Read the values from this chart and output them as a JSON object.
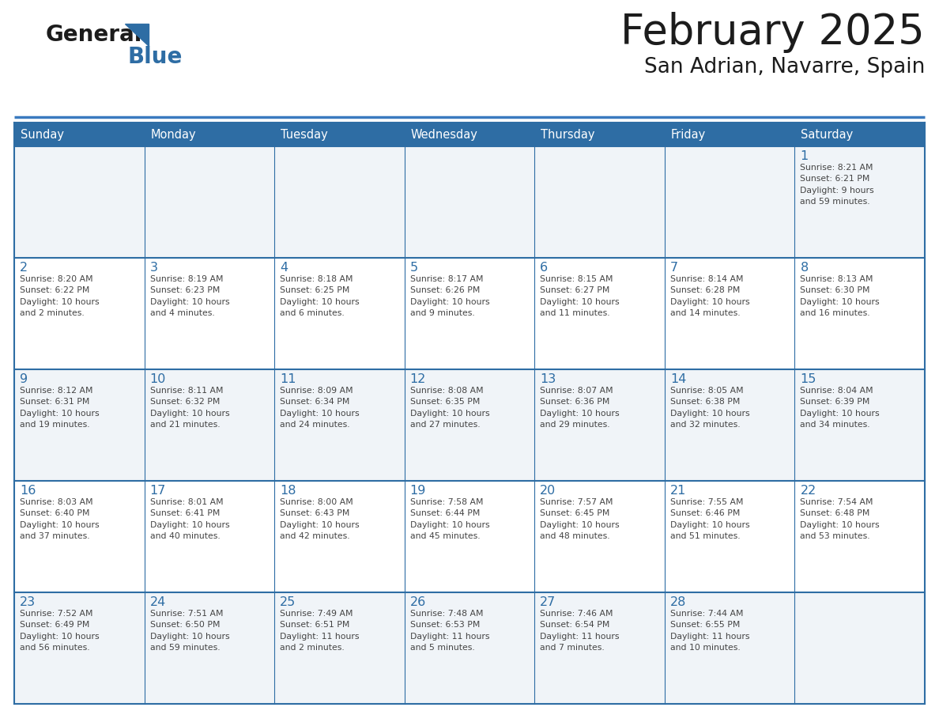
{
  "title": "February 2025",
  "subtitle": "San Adrian, Navarre, Spain",
  "header_color": "#2e6da4",
  "header_text_color": "#ffffff",
  "cell_bg_odd": "#f0f0f0",
  "cell_bg_even": "#ffffff",
  "day_number_color": "#2e6da4",
  "info_text_color": "#555555",
  "border_color": "#2e6da4",
  "line_color": "#3a7abf",
  "days_of_week": [
    "Sunday",
    "Monday",
    "Tuesday",
    "Wednesday",
    "Thursday",
    "Friday",
    "Saturday"
  ],
  "weeks": [
    [
      {
        "day": null,
        "info": ""
      },
      {
        "day": null,
        "info": ""
      },
      {
        "day": null,
        "info": ""
      },
      {
        "day": null,
        "info": ""
      },
      {
        "day": null,
        "info": ""
      },
      {
        "day": null,
        "info": ""
      },
      {
        "day": 1,
        "info": "Sunrise: 8:21 AM\nSunset: 6:21 PM\nDaylight: 9 hours\nand 59 minutes."
      }
    ],
    [
      {
        "day": 2,
        "info": "Sunrise: 8:20 AM\nSunset: 6:22 PM\nDaylight: 10 hours\nand 2 minutes."
      },
      {
        "day": 3,
        "info": "Sunrise: 8:19 AM\nSunset: 6:23 PM\nDaylight: 10 hours\nand 4 minutes."
      },
      {
        "day": 4,
        "info": "Sunrise: 8:18 AM\nSunset: 6:25 PM\nDaylight: 10 hours\nand 6 minutes."
      },
      {
        "day": 5,
        "info": "Sunrise: 8:17 AM\nSunset: 6:26 PM\nDaylight: 10 hours\nand 9 minutes."
      },
      {
        "day": 6,
        "info": "Sunrise: 8:15 AM\nSunset: 6:27 PM\nDaylight: 10 hours\nand 11 minutes."
      },
      {
        "day": 7,
        "info": "Sunrise: 8:14 AM\nSunset: 6:28 PM\nDaylight: 10 hours\nand 14 minutes."
      },
      {
        "day": 8,
        "info": "Sunrise: 8:13 AM\nSunset: 6:30 PM\nDaylight: 10 hours\nand 16 minutes."
      }
    ],
    [
      {
        "day": 9,
        "info": "Sunrise: 8:12 AM\nSunset: 6:31 PM\nDaylight: 10 hours\nand 19 minutes."
      },
      {
        "day": 10,
        "info": "Sunrise: 8:11 AM\nSunset: 6:32 PM\nDaylight: 10 hours\nand 21 minutes."
      },
      {
        "day": 11,
        "info": "Sunrise: 8:09 AM\nSunset: 6:34 PM\nDaylight: 10 hours\nand 24 minutes."
      },
      {
        "day": 12,
        "info": "Sunrise: 8:08 AM\nSunset: 6:35 PM\nDaylight: 10 hours\nand 27 minutes."
      },
      {
        "day": 13,
        "info": "Sunrise: 8:07 AM\nSunset: 6:36 PM\nDaylight: 10 hours\nand 29 minutes."
      },
      {
        "day": 14,
        "info": "Sunrise: 8:05 AM\nSunset: 6:38 PM\nDaylight: 10 hours\nand 32 minutes."
      },
      {
        "day": 15,
        "info": "Sunrise: 8:04 AM\nSunset: 6:39 PM\nDaylight: 10 hours\nand 34 minutes."
      }
    ],
    [
      {
        "day": 16,
        "info": "Sunrise: 8:03 AM\nSunset: 6:40 PM\nDaylight: 10 hours\nand 37 minutes."
      },
      {
        "day": 17,
        "info": "Sunrise: 8:01 AM\nSunset: 6:41 PM\nDaylight: 10 hours\nand 40 minutes."
      },
      {
        "day": 18,
        "info": "Sunrise: 8:00 AM\nSunset: 6:43 PM\nDaylight: 10 hours\nand 42 minutes."
      },
      {
        "day": 19,
        "info": "Sunrise: 7:58 AM\nSunset: 6:44 PM\nDaylight: 10 hours\nand 45 minutes."
      },
      {
        "day": 20,
        "info": "Sunrise: 7:57 AM\nSunset: 6:45 PM\nDaylight: 10 hours\nand 48 minutes."
      },
      {
        "day": 21,
        "info": "Sunrise: 7:55 AM\nSunset: 6:46 PM\nDaylight: 10 hours\nand 51 minutes."
      },
      {
        "day": 22,
        "info": "Sunrise: 7:54 AM\nSunset: 6:48 PM\nDaylight: 10 hours\nand 53 minutes."
      }
    ],
    [
      {
        "day": 23,
        "info": "Sunrise: 7:52 AM\nSunset: 6:49 PM\nDaylight: 10 hours\nand 56 minutes."
      },
      {
        "day": 24,
        "info": "Sunrise: 7:51 AM\nSunset: 6:50 PM\nDaylight: 10 hours\nand 59 minutes."
      },
      {
        "day": 25,
        "info": "Sunrise: 7:49 AM\nSunset: 6:51 PM\nDaylight: 11 hours\nand 2 minutes."
      },
      {
        "day": 26,
        "info": "Sunrise: 7:48 AM\nSunset: 6:53 PM\nDaylight: 11 hours\nand 5 minutes."
      },
      {
        "day": 27,
        "info": "Sunrise: 7:46 AM\nSunset: 6:54 PM\nDaylight: 11 hours\nand 7 minutes."
      },
      {
        "day": 28,
        "info": "Sunrise: 7:44 AM\nSunset: 6:55 PM\nDaylight: 11 hours\nand 10 minutes."
      },
      {
        "day": null,
        "info": ""
      }
    ]
  ]
}
